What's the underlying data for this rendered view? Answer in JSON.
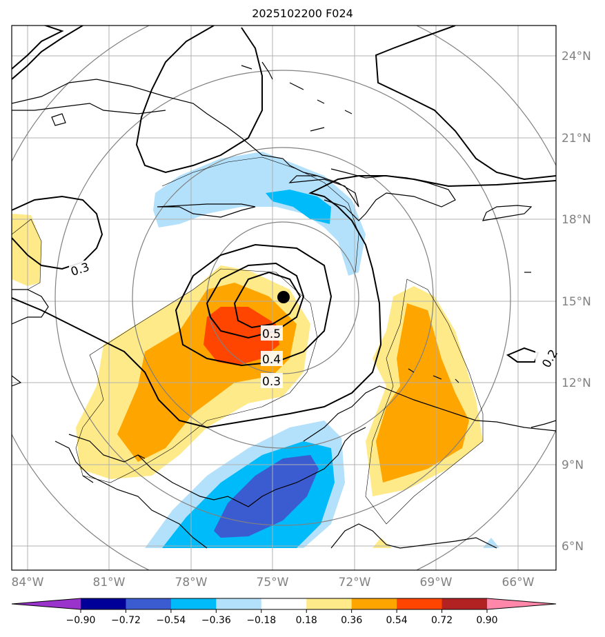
{
  "title": "2025102200 F024",
  "lat_labels": [
    "24°N",
    "21°N",
    "18°N",
    "15°N",
    "12°N",
    "9°N",
    "6°N"
  ],
  "lon_labels": [
    "84°W",
    "81°W",
    "78°W",
    "75°W",
    "72°W",
    "69°W",
    "66°W"
  ],
  "contour_labels": [
    "0.3",
    "0.5",
    "0.4",
    "0.3",
    "0.2"
  ],
  "colorbar": {
    "ticks": [
      "−0.90",
      "−0.72",
      "−0.54",
      "−0.36",
      "−0.18",
      "0.18",
      "0.36",
      "0.54",
      "0.72",
      "0.90"
    ],
    "colors": [
      "#9933cc",
      "#000099",
      "#3b5bd0",
      "#00bbf9",
      "#b3e0fa",
      "#ffffff",
      "#ffea8a",
      "#ffa500",
      "#ff4500",
      "#b22222",
      "#ff88aa"
    ]
  },
  "colors": {
    "light_yellow": "#ffea8a",
    "orange": "#ffa500",
    "red_orange": "#ff4500",
    "light_blue": "#b3e0fa",
    "blue": "#00bbf9",
    "dark_blue": "#3b5bd0"
  },
  "markers": [
    {
      "name": "storm-center",
      "lat": 15.1,
      "lon": -74.7
    }
  ]
}
